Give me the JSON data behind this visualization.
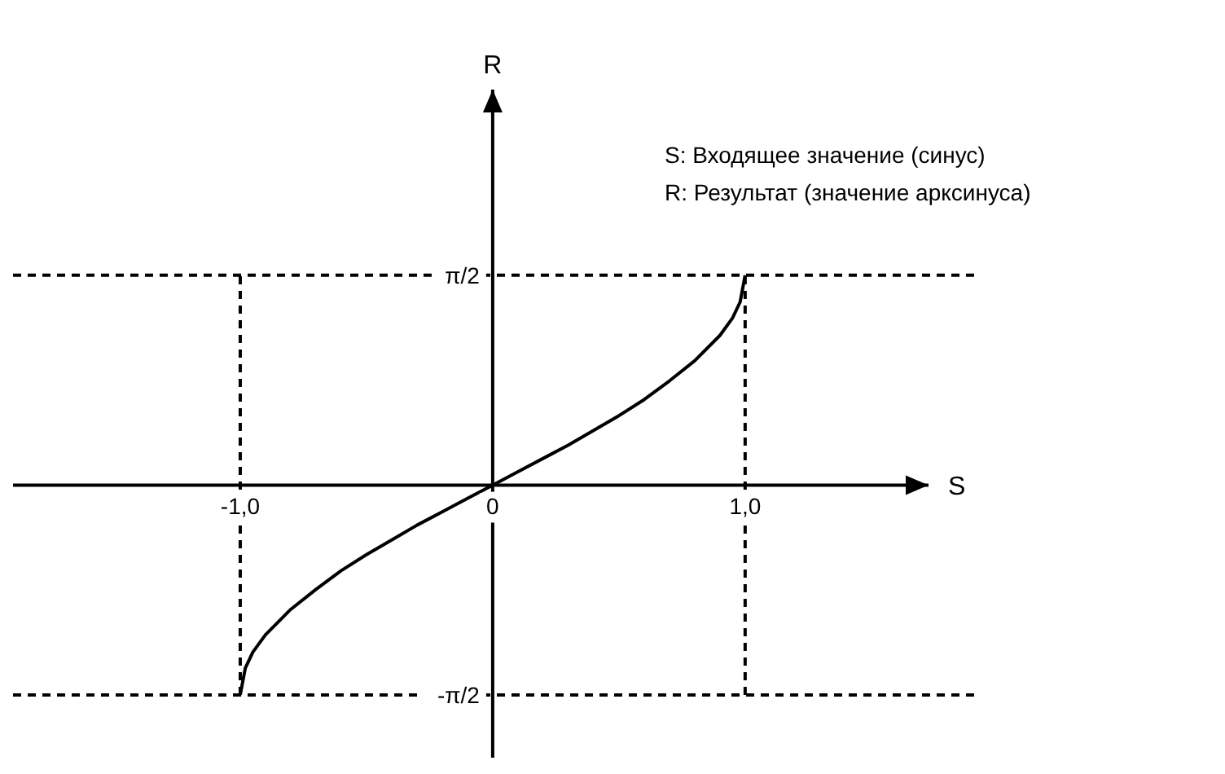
{
  "chart_data": {
    "type": "line",
    "xlabel": "S",
    "ylabel": "R",
    "annotations": [
      "S: Входящее значение (синус)",
      "R: Результат (значение арксинуса)"
    ],
    "x": [
      -1,
      -0.98,
      -0.95,
      -0.9,
      -0.8,
      -0.7,
      -0.6,
      -0.5,
      -0.4,
      -0.3,
      -0.2,
      -0.1,
      0,
      0.1,
      0.2,
      0.3,
      0.4,
      0.5,
      0.6,
      0.7,
      0.8,
      0.9,
      0.95,
      0.98,
      1
    ],
    "series": [
      {
        "color": "#000000",
        "values": [
          -1.57,
          -1.37,
          -1.25,
          -1.12,
          -0.93,
          -0.78,
          -0.64,
          -0.52,
          -0.41,
          -0.3,
          -0.2,
          -0.1,
          0,
          0.1,
          0.2,
          0.3,
          0.41,
          0.52,
          0.64,
          0.78,
          0.93,
          1.12,
          1.25,
          1.37,
          1.57
        ]
      }
    ],
    "xlim": [
      -1.9,
      1.92
    ],
    "ylim": [
      -2.04,
      2.96
    ],
    "xticks": [
      {
        "value": -1,
        "label": "-1,0"
      },
      0,
      {
        "value": 1,
        "label": "1,0"
      }
    ],
    "yticks": [
      {
        "value": 1.5708,
        "label": "π/2"
      },
      {
        "value": -1.5708,
        "label": "-π/2"
      }
    ],
    "ref_lines": [
      {
        "axis": "x",
        "value": -1,
        "line_style": "dashed",
        "color": "#000000"
      },
      {
        "axis": "x",
        "value": 1,
        "line_style": "dashed",
        "color": "#000000"
      },
      {
        "axis": "y",
        "value": 1.5708,
        "line_style": "dashed",
        "color": "#000000"
      },
      {
        "axis": "y",
        "value": -1.5708,
        "line_style": "dashed",
        "color": "#000000"
      }
    ],
    "grid": false,
    "legend": false,
    "marker": "none",
    "line_style": "solid"
  }
}
